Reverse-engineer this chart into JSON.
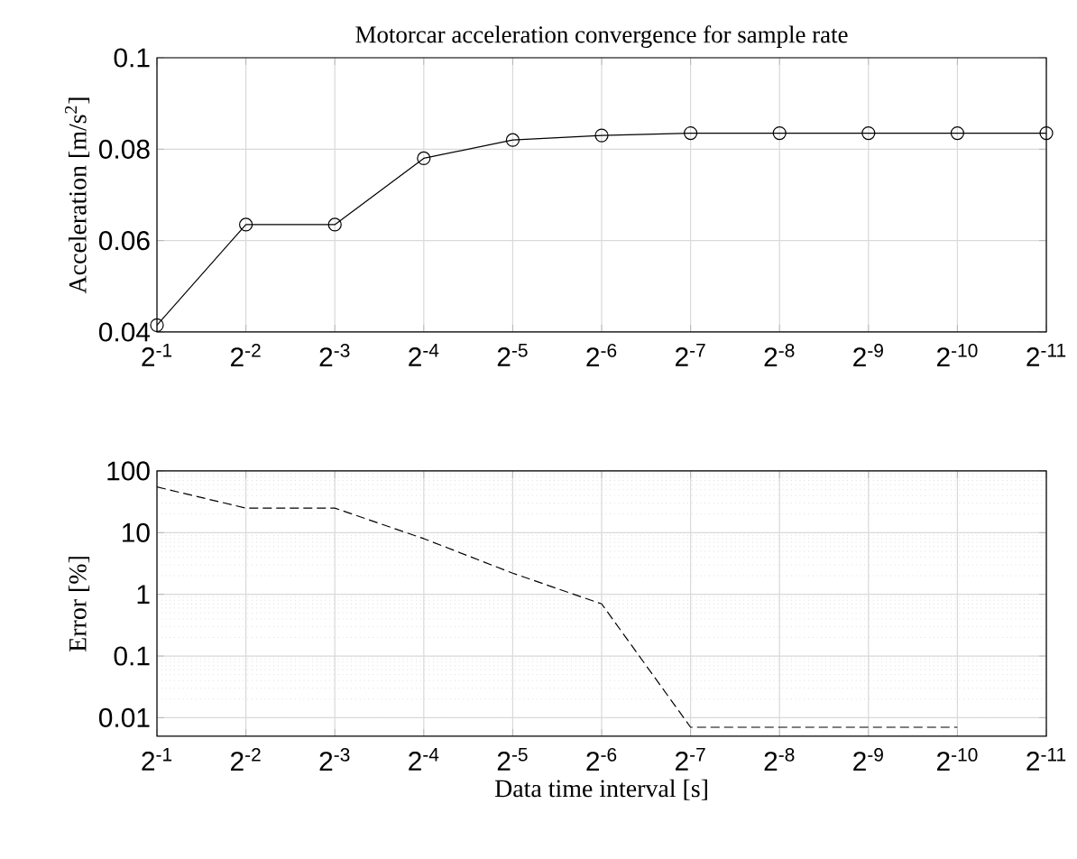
{
  "chart_data": [
    {
      "type": "line",
      "title": "Motorcar acceleration convergence for sample rate",
      "ylabel": "Acceleration [m/s$^{2}$]",
      "categories": [
        "2$^{-1}$",
        "2$^{-2}$",
        "2$^{-3}$",
        "2$^{-4}$",
        "2$^{-5}$",
        "2$^{-6}$",
        "2$^{-7}$",
        "2$^{-8}$",
        "2$^{-9}$",
        "2$^{-10}$",
        "2$^{-11}$"
      ],
      "series": [
        {
          "color": "#000000",
          "values": [
            0.0415,
            0.0635,
            0.0635,
            0.078,
            0.082,
            0.083,
            0.0835,
            0.0835,
            0.0835,
            0.0835,
            0.0835
          ]
        }
      ],
      "ylim": [
        0.04,
        0.1
      ],
      "yticks": [
        0.04,
        0.06,
        0.08,
        0.1
      ],
      "grid": true,
      "marker": "circle",
      "line_style": "solid"
    },
    {
      "type": "line",
      "xlabel": "Data time interval [s]",
      "ylabel": "Error [%]",
      "categories": [
        "2$^{-1}$",
        "2$^{-2}$",
        "2$^{-3}$",
        "2$^{-4}$",
        "2$^{-5}$",
        "2$^{-6}$",
        "2$^{-7}$",
        "2$^{-8}$",
        "2$^{-9}$",
        "2$^{-10}$",
        "2$^{-11}$"
      ],
      "series": [
        {
          "color": "#000000",
          "values": [
            55,
            25,
            25,
            8,
            2.2,
            0.7,
            0.007,
            0.007,
            0.007,
            0.007,
            null
          ]
        }
      ],
      "log": "y",
      "ylim": [
        0.005,
        100
      ],
      "yticks": [
        0.01,
        0.1,
        1,
        10,
        100
      ],
      "grid": true,
      "marker": "none",
      "line_style": "dashed"
    }
  ]
}
